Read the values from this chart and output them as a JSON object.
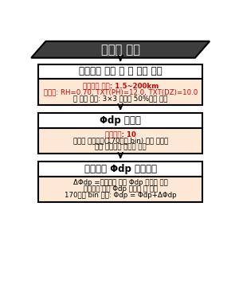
{
  "title_box": {
    "text": "레이더 자료",
    "bg_color": "#3d3d3d",
    "text_color": "#ffffff",
    "fontsize": 10.5,
    "bold": true
  },
  "blocks": [
    {
      "header": "강우영역 선택 및 점 에코 제거",
      "header_bg": "#ffffff",
      "header_border": "#000000",
      "body_bg": "#fce8d5",
      "body_border": "#000000",
      "body_lines": [
        {
          "text": "강우영역 선택: 1.5~200km",
          "color": "#cc0000",
          "bold": true,
          "mixed": false
        },
        {
          "text": "임계치: RH=0.70, TXT(PH)=12.0, TXT(DZ)=10.0",
          "color": "#cc0000",
          "bold": false,
          "mixed": false
        },
        {
          "text": "점 에코 제거: 3×3 영역내 50%이상 차지",
          "color": "#000000",
          "bold": false,
          "mixed": false
        }
      ]
    },
    {
      "header": "Φdp 필터링",
      "header_bg": "#ffffff",
      "header_border": "#000000",
      "body_bg": "#fce8d5",
      "body_border": "#000000",
      "body_lines": [
        {
          "text": "반복횟수: 10",
          "color": "#cc0000",
          "bold": true,
          "mixed": false
        },
        {
          "text": "불연속 경계지역(170번째 bin) 이전 영역과",
          "color": "#000000",
          "bold": false,
          "mixed": false
        },
        {
          "text": "이후 영역으로 나누어 수행",
          "color": "#000000",
          "bold": false,
          "mixed": false
        }
      ]
    },
    {
      "header": "필터링된 Φdp 평행이동",
      "header_bg": "#ffffff",
      "header_border": "#000000",
      "body_bg": "#fce8d5",
      "body_border": "#000000",
      "body_lines": [
        {
          "text": "ΔΦdp =경계지역 이전 Φdp 최우측 값과",
          "color": "#000000",
          "bold": false,
          "mixed": false
        },
        {
          "text": "경계지역 이후 Φdp 최좌측 값 차이",
          "color": "#000000",
          "bold": false,
          "mixed": false
        },
        {
          "text": "170번째 bin 이후: Φdp = Φdp+ΔΦdp",
          "color": "#000000",
          "bold": false,
          "mixed": false
        }
      ]
    }
  ],
  "arrow_color": "#000000",
  "bg_color": "#ffffff"
}
